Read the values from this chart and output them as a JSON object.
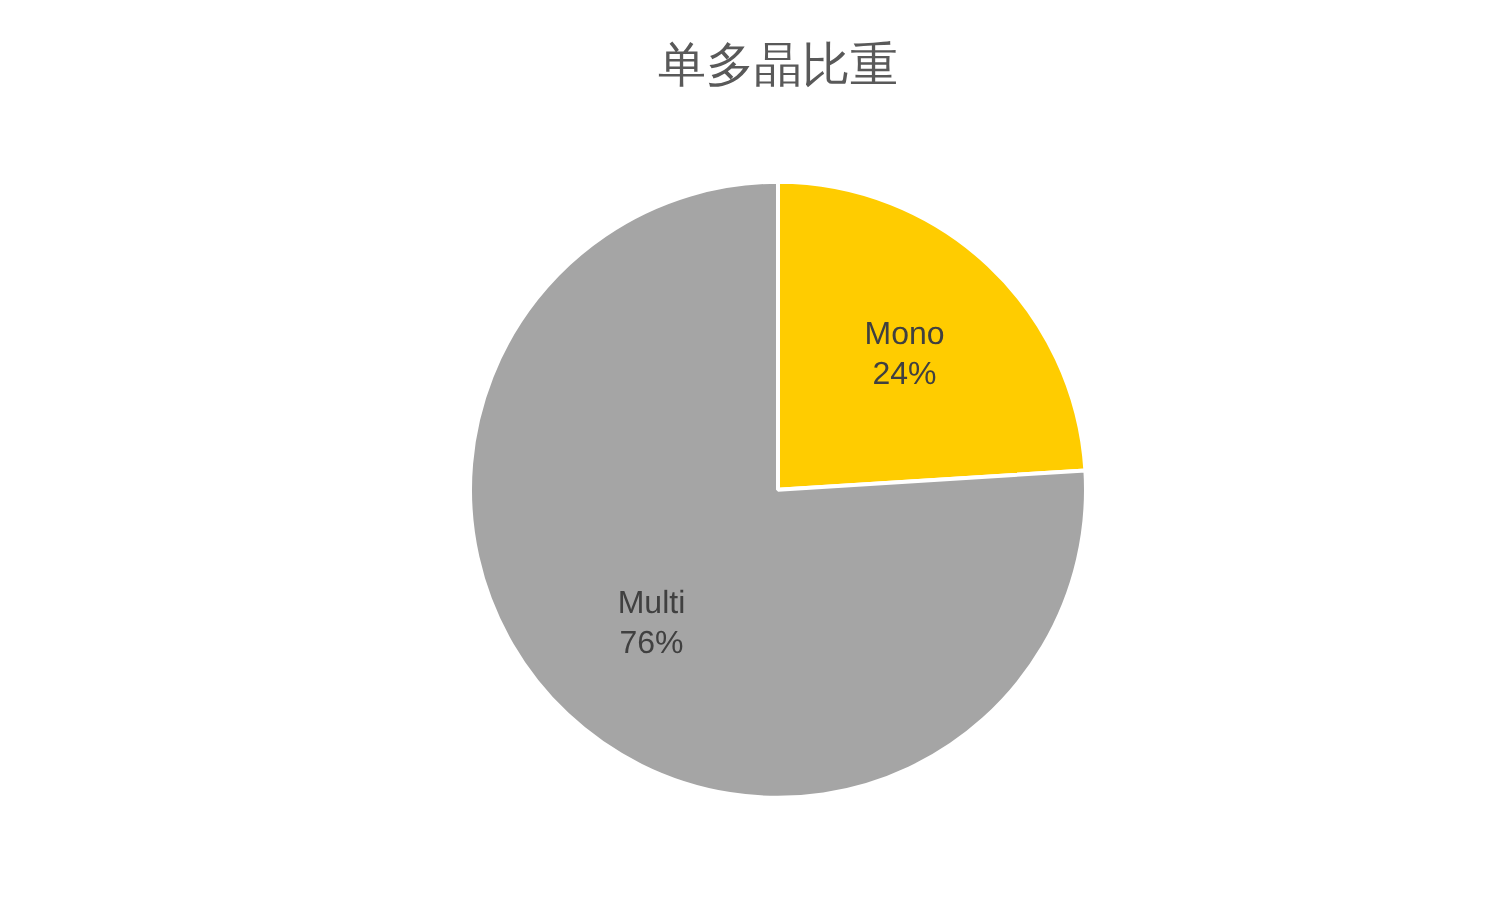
{
  "chart_data": {
    "type": "pie",
    "title": "单多晶比重",
    "categories": [
      "Mono",
      "Multi"
    ],
    "values": [
      24,
      76
    ],
    "colors": [
      "#ffcc00",
      "#a5a5a5"
    ],
    "value_labels": [
      "24%",
      "76%"
    ],
    "legend": false
  }
}
